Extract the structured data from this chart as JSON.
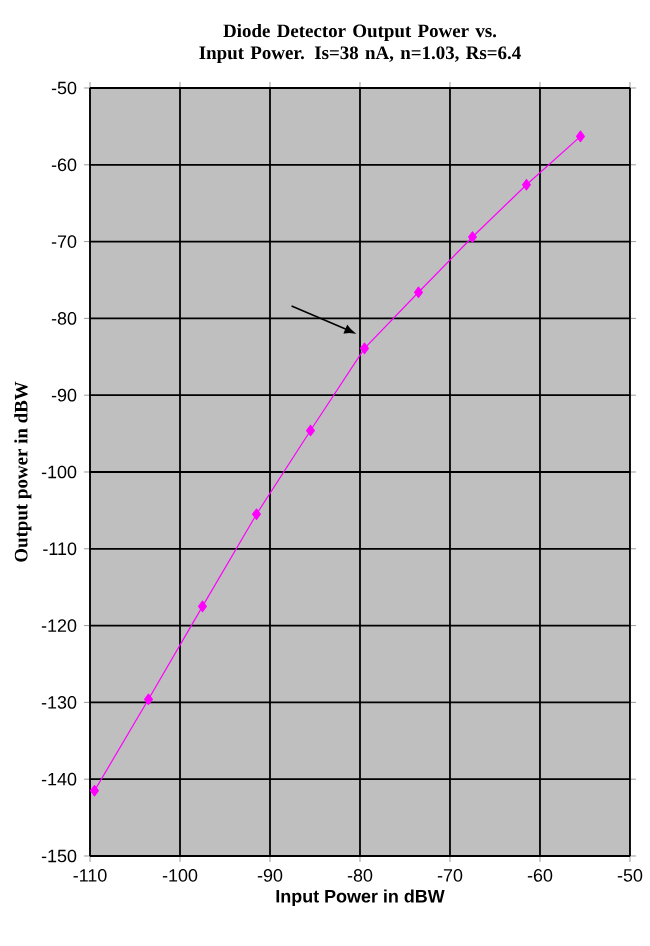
{
  "chart_data": {
    "type": "line",
    "title": "Diode Detector Output Power vs. Input Power. Is=38 nA, n=1.03, Rs=6.4",
    "xlabel": "Input Power in dBW",
    "ylabel": "Output power in dBW",
    "x": [
      -109.5,
      -103.5,
      -97.5,
      -91.5,
      -85.5,
      -79.5,
      -73.5,
      -67.5,
      -61.5,
      -55.5
    ],
    "series": [
      {
        "color": "#ff00ff",
        "values": [
          -141.5,
          -129.6,
          -117.5,
          -105.5,
          -94.6,
          -83.9,
          -76.6,
          -69.4,
          -62.6,
          -56.3
        ]
      }
    ],
    "xlim": [
      -110,
      -50
    ],
    "ylim": [
      -150,
      -50
    ],
    "xticks": [
      -110,
      -100,
      -90,
      -80,
      -70,
      -60,
      -50
    ],
    "yticks": [
      -150,
      -140,
      -130,
      -120,
      -110,
      -100,
      -90,
      -80,
      -70,
      -60,
      -50
    ],
    "grid": true,
    "marker": "diamond",
    "line_style": "solid"
  }
}
